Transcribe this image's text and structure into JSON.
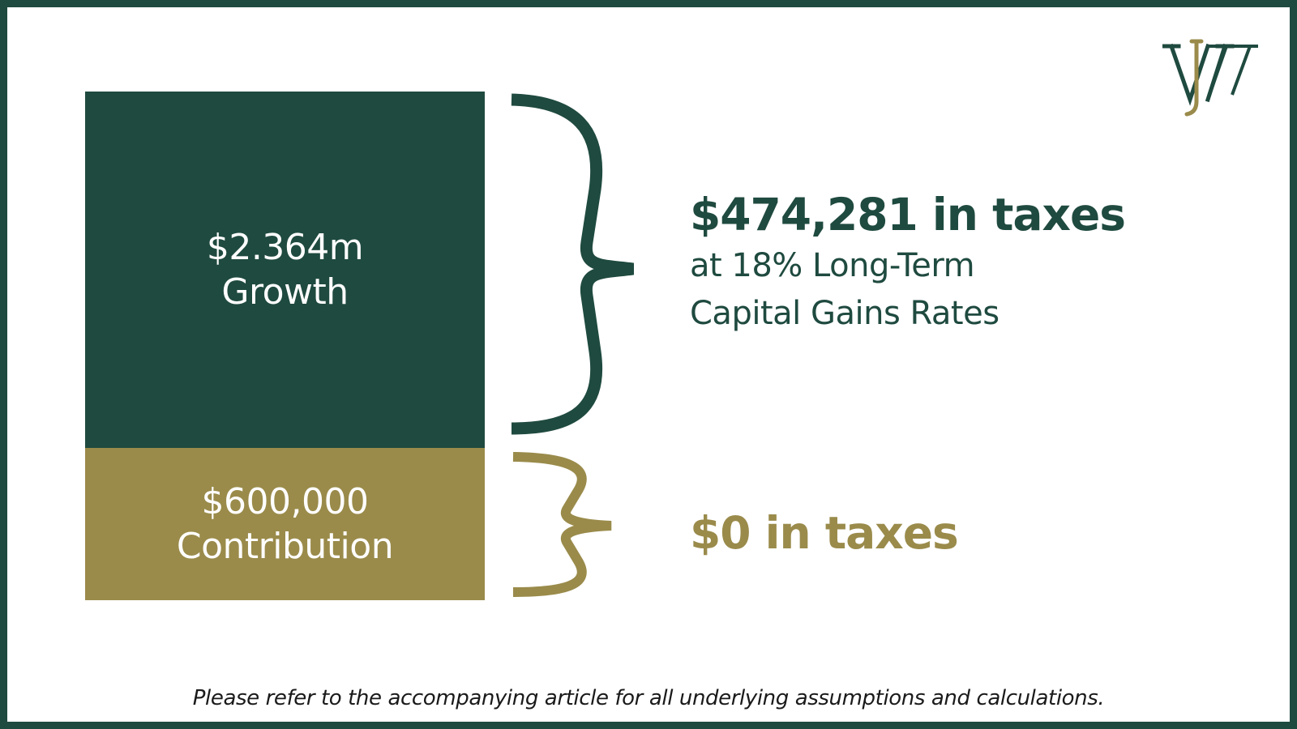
{
  "colors": {
    "frame": "#1f4a3f",
    "growth": "#1f4a3f",
    "contribution": "#9a8b4b",
    "background": "#ffffff"
  },
  "logo": {
    "letters": "WJ"
  },
  "blocks": {
    "growth": {
      "amount": "$2.364m",
      "label": "Growth"
    },
    "contribution": {
      "amount": "$600,000",
      "label": "Contribution"
    }
  },
  "taxes": {
    "growth": {
      "headline": "$474,281 in taxes",
      "line1": "at 18% Long-Term",
      "line2": "Capital Gains Rates"
    },
    "contribution": {
      "headline": "$0 in taxes"
    }
  },
  "footnote": "Please refer to the accompanying article for all underlying  assumptions and calculations."
}
